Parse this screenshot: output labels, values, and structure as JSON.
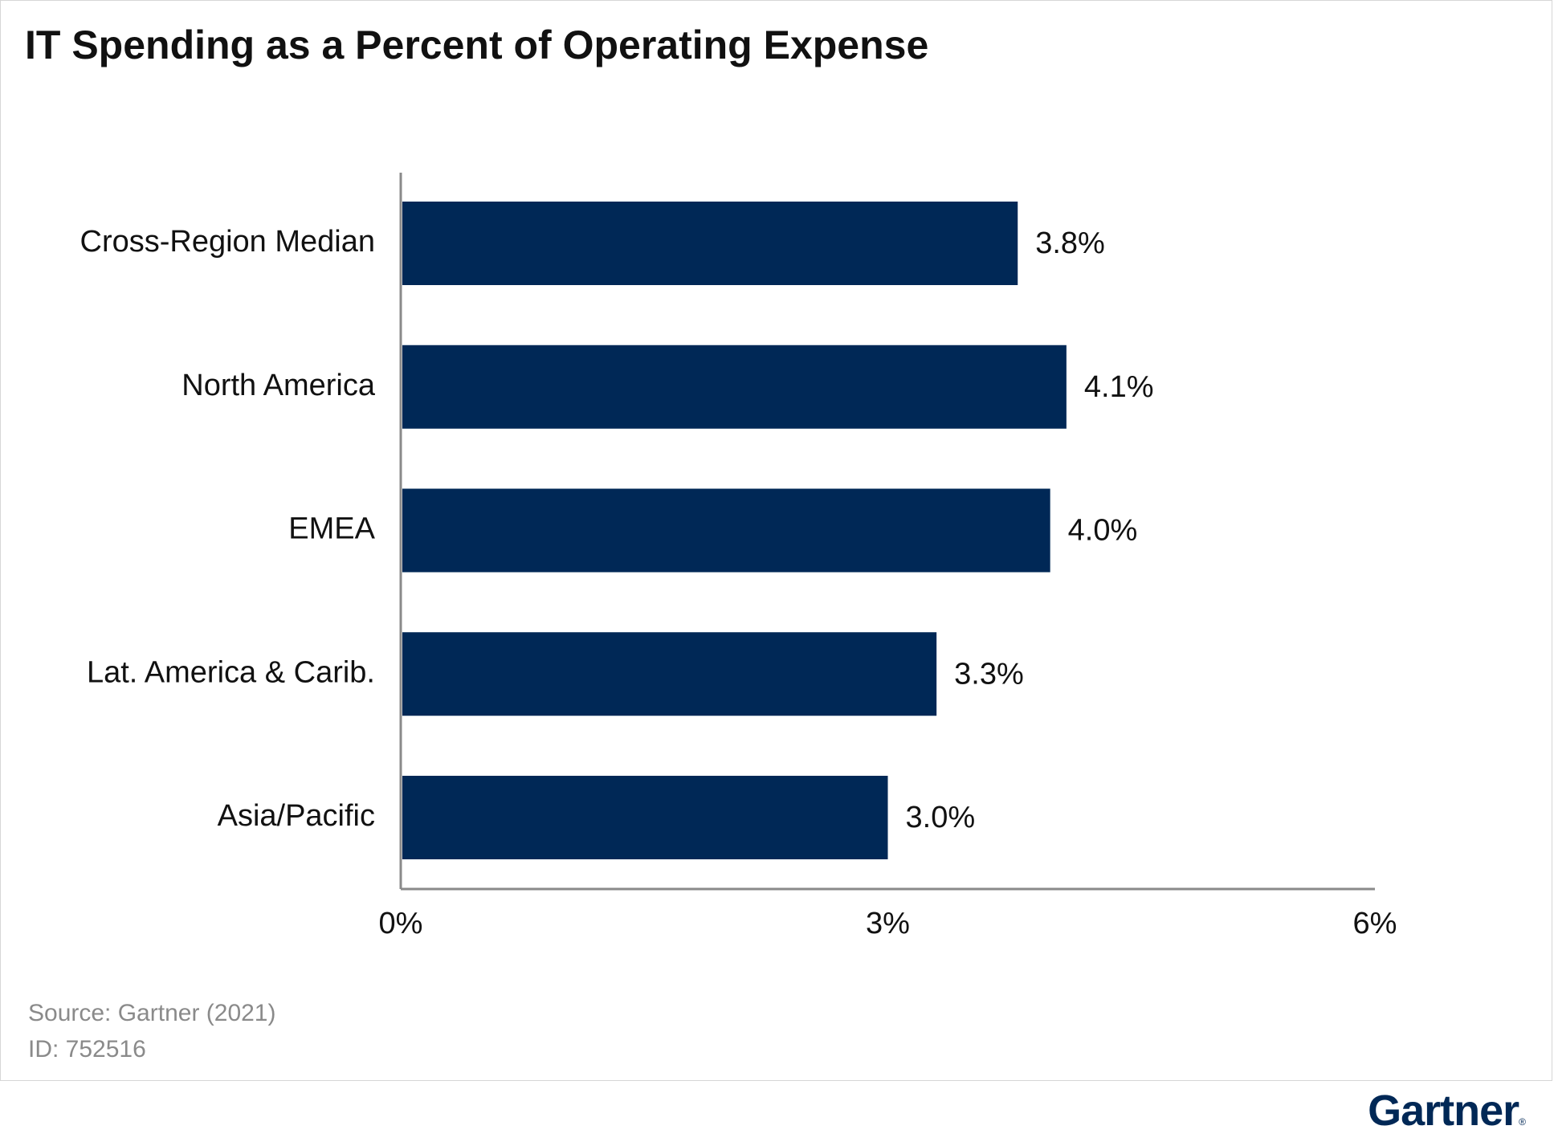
{
  "header": {
    "title": "IT Spending as a Percent of Operating Expense"
  },
  "footer": {
    "source": "Source: Gartner (2021)",
    "id": "ID: 752516"
  },
  "brand": {
    "name": "Gartner",
    "mark": "®",
    "color": "#002856"
  },
  "colors": {
    "bar": "#002856",
    "axis": "#8a8a8a"
  },
  "chart_data": {
    "type": "bar",
    "orientation": "horizontal",
    "categories": [
      "Cross-Region Median",
      "North America",
      "EMEA",
      "Lat. America & Carib.",
      "Asia/Pacific"
    ],
    "values": [
      3.8,
      4.1,
      4.0,
      3.3,
      3.0
    ],
    "value_labels": [
      "3.8%",
      "4.1%",
      "4.0%",
      "3.3%",
      "3.0%"
    ],
    "title": "IT Spending as a Percent of Operating Expense",
    "xlim": [
      0,
      6
    ],
    "xticks": [
      0,
      3,
      6
    ],
    "xtick_labels": [
      "0%",
      "3%",
      "6%"
    ],
    "grid": false,
    "legend": "none"
  }
}
